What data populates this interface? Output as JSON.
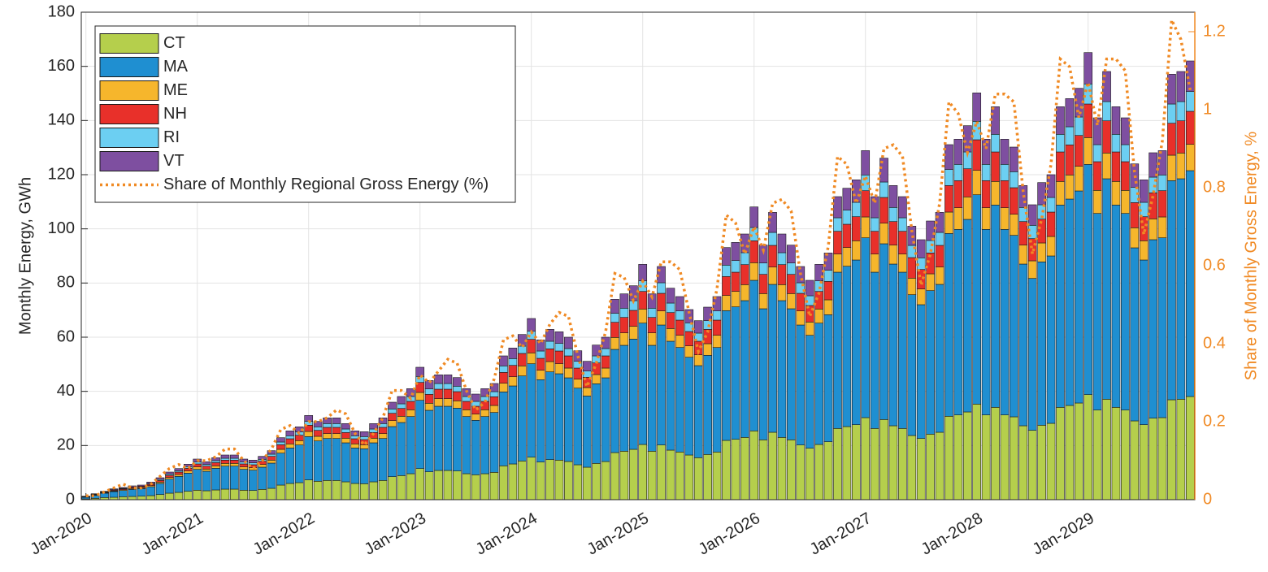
{
  "chart_data": {
    "type": "bar",
    "stacked": true,
    "ylabel": "Monthly Energy, GWh",
    "y2label": "Share of Monthly Gross Energy, %",
    "ylim": [
      0,
      180
    ],
    "yticks": [
      0,
      20,
      40,
      60,
      80,
      100,
      120,
      140,
      160,
      180
    ],
    "y2lim": [
      0,
      1.25
    ],
    "y2ticks": [
      0,
      0.2,
      0.4,
      0.6,
      0.8,
      1,
      1.2
    ],
    "y2color": "#f08a24",
    "grid": true,
    "legend": "northwest",
    "categories": [
      "Jan-2020",
      null,
      null,
      null,
      null,
      null,
      null,
      null,
      null,
      null,
      null,
      null,
      "Jan-2021",
      null,
      null,
      null,
      null,
      null,
      null,
      null,
      null,
      null,
      null,
      null,
      "Jan-2022",
      null,
      null,
      null,
      null,
      null,
      null,
      null,
      null,
      null,
      null,
      null,
      "Jan-2023",
      null,
      null,
      null,
      null,
      null,
      null,
      null,
      null,
      null,
      null,
      null,
      "Jan-2024",
      null,
      null,
      null,
      null,
      null,
      null,
      null,
      null,
      null,
      null,
      null,
      "Jan-2025",
      null,
      null,
      null,
      null,
      null,
      null,
      null,
      null,
      null,
      null,
      null,
      "Jan-2026",
      null,
      null,
      null,
      null,
      null,
      null,
      null,
      null,
      null,
      null,
      null,
      "Jan-2027",
      null,
      null,
      null,
      null,
      null,
      null,
      null,
      null,
      null,
      null,
      null,
      "Jan-2028",
      null,
      null,
      null,
      null,
      null,
      null,
      null,
      null,
      null,
      null,
      null,
      "Jan-2029",
      null,
      null,
      null,
      null,
      null,
      null,
      null,
      null,
      null,
      null,
      null
    ],
    "series": [
      {
        "name": "CT",
        "color": "#b5cf4c",
        "values": [
          0.3,
          0.5,
          0.8,
          0.9,
          1.1,
          1.2,
          1.3,
          1.5,
          1.9,
          2.4,
          2.7,
          3.1,
          3.5,
          3.3,
          3.6,
          3.9,
          3.9,
          3.5,
          3.4,
          3.8,
          4.2,
          5.4,
          6.0,
          6.3,
          7.3,
          6.8,
          7.1,
          7.1,
          6.6,
          6.0,
          5.9,
          6.6,
          7.1,
          8.5,
          8.9,
          9.6,
          11.5,
          10.3,
          10.8,
          10.8,
          10.6,
          9.6,
          9.2,
          9.6,
          10.1,
          12.5,
          13.2,
          14.3,
          15.7,
          13.9,
          14.8,
          14.6,
          14.1,
          12.9,
          12.0,
          13.4,
          14.1,
          17.4,
          17.9,
          18.6,
          20.4,
          17.9,
          20.2,
          18.3,
          17.6,
          16.5,
          15.5,
          16.7,
          17.6,
          21.9,
          22.3,
          23.0,
          25.4,
          22.1,
          24.9,
          23.0,
          22.1,
          20.2,
          19.0,
          20.4,
          21.4,
          26.3,
          27.0,
          27.7,
          30.3,
          26.3,
          29.6,
          27.3,
          26.3,
          23.7,
          22.6,
          24.2,
          24.9,
          30.8,
          31.3,
          32.4,
          35.3,
          31.3,
          34.1,
          31.3,
          30.6,
          27.3,
          25.6,
          27.5,
          28.2,
          34.1,
          34.8,
          35.7,
          38.8,
          33.1,
          37.1,
          34.1,
          33.1,
          29.1,
          27.7,
          30.1,
          30.3,
          36.9,
          37.1,
          38.1
        ]
      },
      {
        "name": "MA",
        "color": "#1f8fd1",
        "values": [
          0.6,
          1.1,
          1.6,
          2.1,
          2.3,
          2.6,
          2.8,
          3.3,
          4.1,
          5.2,
          5.9,
          6.7,
          7.7,
          7.2,
          8.0,
          8.5,
          8.5,
          7.7,
          7.5,
          8.2,
          9.3,
          11.8,
          13.1,
          13.9,
          16.0,
          14.9,
          15.5,
          15.5,
          14.4,
          13.1,
          12.9,
          14.4,
          15.5,
          18.5,
          19.6,
          21.1,
          25.2,
          22.7,
          23.7,
          23.7,
          23.2,
          21.1,
          20.1,
          21.1,
          22.1,
          27.3,
          28.8,
          31.4,
          34.5,
          30.4,
          32.4,
          31.9,
          30.9,
          28.3,
          26.3,
          29.4,
          30.9,
          38.1,
          39.1,
          40.7,
          44.8,
          39.1,
          44.3,
          40.2,
          38.6,
          36.1,
          34.0,
          36.6,
          38.6,
          47.9,
          48.9,
          50.5,
          55.6,
          48.4,
          54.6,
          50.5,
          48.4,
          44.3,
          41.7,
          44.8,
          46.9,
          57.7,
          59.2,
          60.8,
          66.4,
          57.7,
          64.9,
          59.7,
          57.7,
          52.0,
          49.4,
          53.0,
          54.6,
          67.5,
          68.5,
          71.1,
          77.3,
          68.5,
          74.7,
          68.5,
          67.0,
          59.7,
          56.1,
          60.3,
          61.8,
          74.7,
          76.2,
          78.3,
          85.0,
          72.6,
          81.4,
          74.7,
          72.6,
          63.9,
          60.8,
          65.9,
          66.4,
          80.9,
          81.4,
          83.4
        ]
      },
      {
        "name": "ME",
        "color": "#f6b62c",
        "values": [
          0.1,
          0.1,
          0.2,
          0.2,
          0.3,
          0.3,
          0.3,
          0.4,
          0.5,
          0.6,
          0.7,
          0.8,
          0.9,
          0.8,
          0.9,
          1.0,
          1.0,
          0.9,
          0.9,
          1.0,
          1.1,
          1.4,
          1.5,
          1.6,
          1.9,
          1.7,
          1.8,
          1.8,
          1.7,
          1.5,
          1.5,
          1.7,
          1.8,
          2.2,
          2.3,
          2.5,
          2.9,
          2.6,
          2.8,
          2.8,
          2.7,
          2.5,
          2.3,
          2.5,
          2.6,
          3.2,
          3.4,
          3.7,
          4.0,
          3.5,
          3.8,
          3.7,
          3.6,
          3.3,
          3.1,
          3.4,
          3.6,
          4.4,
          4.6,
          4.7,
          5.2,
          4.6,
          5.2,
          4.7,
          4.5,
          4.2,
          4.0,
          4.3,
          4.5,
          5.6,
          5.7,
          5.9,
          6.5,
          5.6,
          6.4,
          5.9,
          5.6,
          5.2,
          4.9,
          5.2,
          5.5,
          6.7,
          6.9,
          7.1,
          7.7,
          6.7,
          7.6,
          7.0,
          6.7,
          6.1,
          5.8,
          6.2,
          6.4,
          7.9,
          8.0,
          8.3,
          9.0,
          8.0,
          8.7,
          8.0,
          7.8,
          7.0,
          6.5,
          7.0,
          7.2,
          8.7,
          8.9,
          9.1,
          9.9,
          8.5,
          9.5,
          8.7,
          8.5,
          7.4,
          7.1,
          7.7,
          7.7,
          9.4,
          9.5,
          9.7
        ]
      },
      {
        "name": "NH",
        "color": "#e8302a",
        "values": [
          0.1,
          0.2,
          0.2,
          0.3,
          0.3,
          0.4,
          0.4,
          0.5,
          0.6,
          0.8,
          0.9,
          1.0,
          1.1,
          1.1,
          1.2,
          1.2,
          1.2,
          1.1,
          1.1,
          1.2,
          1.4,
          1.7,
          1.9,
          2.0,
          2.3,
          2.2,
          2.3,
          2.3,
          2.1,
          1.9,
          1.9,
          2.1,
          2.3,
          2.7,
          2.9,
          3.1,
          3.7,
          3.3,
          3.5,
          3.5,
          3.4,
          3.1,
          2.9,
          3.1,
          3.2,
          4.0,
          4.2,
          4.6,
          5.0,
          4.4,
          4.7,
          4.7,
          4.5,
          4.1,
          3.8,
          4.3,
          4.5,
          5.6,
          5.7,
          5.9,
          6.5,
          5.7,
          6.5,
          5.9,
          5.6,
          5.3,
          5.0,
          5.3,
          5.6,
          7.0,
          7.1,
          7.4,
          8.1,
          7.1,
          8.0,
          7.4,
          7.1,
          6.5,
          6.1,
          6.5,
          6.8,
          8.4,
          8.6,
          8.9,
          9.7,
          8.4,
          9.5,
          8.7,
          8.4,
          7.6,
          7.2,
          7.7,
          8.0,
          9.8,
          10.0,
          10.4,
          11.3,
          10.0,
          10.9,
          10.0,
          9.8,
          8.7,
          8.2,
          8.8,
          9.0,
          10.9,
          11.1,
          11.4,
          12.4,
          10.6,
          11.9,
          10.9,
          10.6,
          9.3,
          8.9,
          9.6,
          9.7,
          11.8,
          11.9,
          12.2
        ]
      },
      {
        "name": "RI",
        "color": "#6ccff2",
        "values": [
          0.1,
          0.1,
          0.1,
          0.2,
          0.2,
          0.2,
          0.2,
          0.3,
          0.4,
          0.5,
          0.5,
          0.6,
          0.7,
          0.6,
          0.7,
          0.7,
          0.7,
          0.7,
          0.7,
          0.7,
          0.8,
          1.0,
          1.1,
          1.2,
          1.4,
          1.3,
          1.4,
          1.4,
          1.3,
          1.1,
          1.1,
          1.3,
          1.4,
          1.6,
          1.7,
          1.8,
          2.2,
          2.0,
          2.1,
          2.1,
          2.0,
          1.8,
          1.8,
          1.8,
          1.9,
          2.4,
          2.5,
          2.7,
          3.0,
          2.7,
          2.8,
          2.8,
          2.7,
          2.5,
          2.3,
          2.6,
          2.7,
          3.3,
          3.4,
          3.6,
          3.9,
          3.4,
          3.9,
          3.5,
          3.4,
          3.2,
          3.0,
          3.2,
          3.4,
          4.2,
          4.3,
          4.4,
          4.9,
          4.2,
          4.8,
          4.4,
          4.2,
          3.9,
          3.6,
          3.9,
          4.1,
          5.0,
          5.2,
          5.3,
          5.8,
          5.0,
          5.7,
          5.2,
          5.0,
          4.5,
          4.3,
          4.6,
          4.8,
          5.9,
          6.0,
          6.2,
          6.8,
          6.0,
          6.5,
          6.0,
          5.9,
          5.2,
          4.9,
          5.3,
          5.4,
          6.5,
          6.7,
          6.8,
          7.4,
          6.3,
          7.1,
          6.5,
          6.3,
          5.6,
          5.3,
          5.8,
          5.8,
          7.1,
          7.1,
          7.3
        ]
      },
      {
        "name": "VT",
        "color": "#7e4fa0",
        "values": [
          0.1,
          0.2,
          0.2,
          0.3,
          0.3,
          0.4,
          0.4,
          0.5,
          0.6,
          0.7,
          0.8,
          0.9,
          1.1,
          1.0,
          1.1,
          1.2,
          1.2,
          1.1,
          1.0,
          1.1,
          1.3,
          1.6,
          1.8,
          1.9,
          2.2,
          2.0,
          2.1,
          2.1,
          2.0,
          1.8,
          1.8,
          2.0,
          2.1,
          2.5,
          2.7,
          2.9,
          3.4,
          3.1,
          3.2,
          3.2,
          3.2,
          2.9,
          2.7,
          2.9,
          3.0,
          3.7,
          3.9,
          4.3,
          4.7,
          4.1,
          4.4,
          4.3,
          4.2,
          3.9,
          3.6,
          4.0,
          4.2,
          5.2,
          5.3,
          5.5,
          6.1,
          5.3,
          6.0,
          5.5,
          5.3,
          4.9,
          4.6,
          5.0,
          5.3,
          6.5,
          6.7,
          6.9,
          7.6,
          6.6,
          7.4,
          6.9,
          6.6,
          6.0,
          5.7,
          6.1,
          6.4,
          7.8,
          8.1,
          8.3,
          9.0,
          7.8,
          8.8,
          8.1,
          7.8,
          7.1,
          6.7,
          7.2,
          7.4,
          9.2,
          9.3,
          9.7,
          10.5,
          9.3,
          10.2,
          9.3,
          9.1,
          8.1,
          7.6,
          8.2,
          8.4,
          10.2,
          10.4,
          10.6,
          11.6,
          9.9,
          11.1,
          10.2,
          9.9,
          8.7,
          8.3,
          9.0,
          9.0,
          11.0,
          11.1,
          11.3
        ]
      },
      {
        "name": "Share of Monthly Regional Gross Energy (%)",
        "type": "line",
        "style": "dotted",
        "axis": "y2",
        "color": "#f08a24",
        "values": [
          0.01,
          0.01,
          0.02,
          0.03,
          0.04,
          0.03,
          0.03,
          0.04,
          0.06,
          0.08,
          0.09,
          0.08,
          0.1,
          0.1,
          0.11,
          0.13,
          0.13,
          0.1,
          0.08,
          0.1,
          0.13,
          0.18,
          0.19,
          0.17,
          0.2,
          0.2,
          0.21,
          0.23,
          0.22,
          0.17,
          0.14,
          0.17,
          0.21,
          0.28,
          0.28,
          0.26,
          0.32,
          0.3,
          0.33,
          0.36,
          0.35,
          0.28,
          0.23,
          0.25,
          0.31,
          0.41,
          0.42,
          0.39,
          0.43,
          0.4,
          0.45,
          0.48,
          0.47,
          0.37,
          0.29,
          0.35,
          0.43,
          0.58,
          0.57,
          0.51,
          0.56,
          0.52,
          0.61,
          0.61,
          0.59,
          0.48,
          0.38,
          0.43,
          0.54,
          0.73,
          0.71,
          0.63,
          0.7,
          0.64,
          0.76,
          0.77,
          0.74,
          0.58,
          0.47,
          0.53,
          0.65,
          0.88,
          0.86,
          0.76,
          0.83,
          0.76,
          0.9,
          0.91,
          0.88,
          0.69,
          0.55,
          0.63,
          0.76,
          1.02,
          0.99,
          0.89,
          0.97,
          0.9,
          1.04,
          1.04,
          1.02,
          0.79,
          0.63,
          0.72,
          0.86,
          1.13,
          1.11,
          0.98,
          1.07,
          0.96,
          1.13,
          1.13,
          1.1,
          0.84,
          0.68,
          0.78,
          0.92,
          1.23,
          1.18,
          1.05
        ]
      }
    ]
  }
}
